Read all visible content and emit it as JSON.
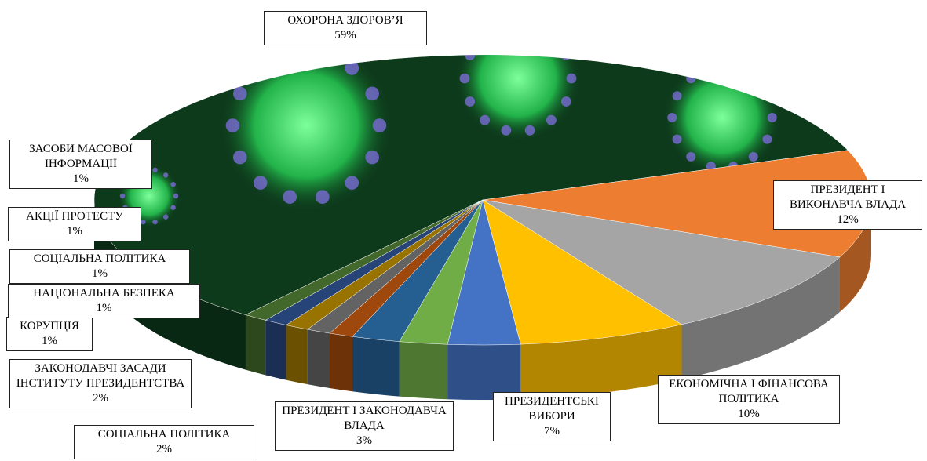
{
  "chart_data": {
    "type": "pie3d",
    "categories": [
      "ОХОРОНА ЗДОРОВ’Я",
      "ПРЕЗИДЕНТ І ВИКОНАВЧА ВЛАДА",
      "ЕКОНОМІЧНА І ФІНАНСОВА ПОЛІТИКА",
      "ПРЕЗИДЕНТСЬКІ ВИБОРИ",
      "ПРЕЗИДЕНТ І ЗАКОНОДАВЧА ВЛАДА",
      "СОЦІАЛЬНА ПОЛІТИКА",
      "ЗАКОНОДАВЧІ ЗАСАДИ ІНСТИТУТУ ПРЕЗИДЕНТСТВА",
      "КОРУПЦІЯ",
      "НАЦІОНАЛЬНА БЕЗПЕКА",
      "СОЦІАЛЬНА ПОЛІТИКА",
      "АКЦІЇ ПРОТЕСТУ",
      "ЗАСОБИ МАСОВОЇ ІНФОРМАЦІЇ"
    ],
    "values": [
      59,
      12,
      10,
      7,
      3,
      2,
      2,
      1,
      1,
      1,
      1,
      1
    ],
    "value_labels": [
      "59%",
      "12%",
      "10%",
      "7%",
      "3%",
      "2%",
      "2%",
      "1%",
      "1%",
      "1%",
      "1%",
      "1%"
    ],
    "colors": [
      "#0e3a1c",
      "#ed7d31",
      "#a5a5a5",
      "#ffc000",
      "#4472c4",
      "#70ad47",
      "#255e91",
      "#9e480e",
      "#636363",
      "#997300",
      "#264478",
      "#43682b"
    ]
  }
}
